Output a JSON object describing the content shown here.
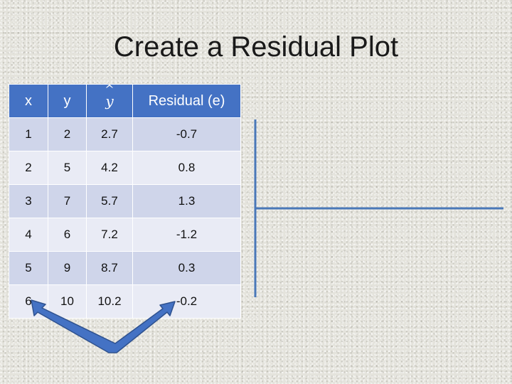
{
  "slide": {
    "title": "Create a Residual Plot"
  },
  "table": {
    "headers": {
      "x": "x",
      "y": "y",
      "yhat_base": "y",
      "yhat_accent": "^",
      "residual": "Residual (e)"
    },
    "rows": [
      {
        "x": "1",
        "y": "2",
        "yhat": "2.7",
        "residual": "-0.7"
      },
      {
        "x": "2",
        "y": "5",
        "yhat": "4.2",
        "residual": "0.8"
      },
      {
        "x": "3",
        "y": "7",
        "yhat": "5.7",
        "residual": "1.3"
      },
      {
        "x": "4",
        "y": "6",
        "yhat": "7.2",
        "residual": "-1.2"
      },
      {
        "x": "5",
        "y": "9",
        "yhat": "8.7",
        "residual": "0.3"
      },
      {
        "x": "6",
        "y": "10",
        "yhat": "10.2",
        "residual": "-0.2"
      }
    ]
  },
  "colors": {
    "header_fill": "#4472c4",
    "axis_line": "#4a78b8",
    "arrow_fill": "#4472c4"
  }
}
